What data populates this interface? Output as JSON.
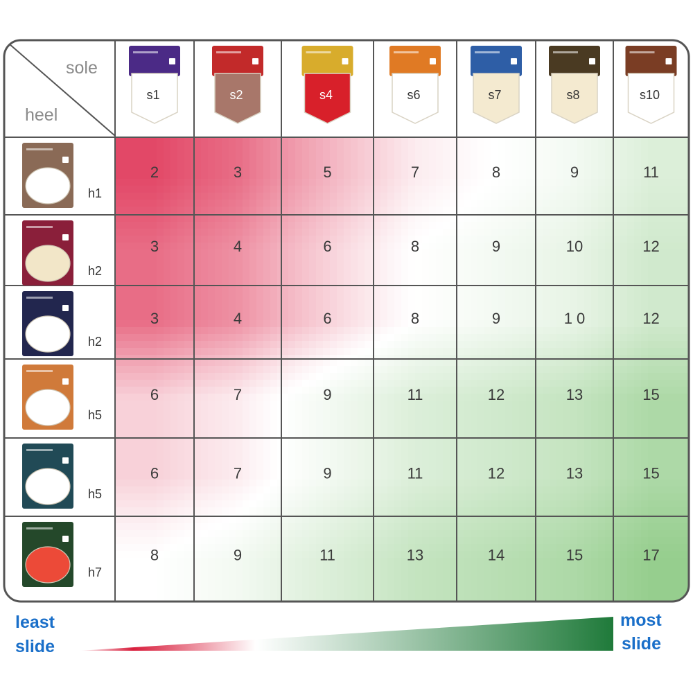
{
  "chart_data": {
    "type": "heatmap",
    "corner": {
      "col_header": "sole",
      "row_header": "heel"
    },
    "columns": [
      {
        "label": "s1",
        "color": "#4b2a86",
        "sole_color": "#ffffff"
      },
      {
        "label": "s2",
        "color": "#c22a2a",
        "sole_color": "#a8776a"
      },
      {
        "label": "s4",
        "color": "#d8ac2c",
        "sole_color": "#d8202a"
      },
      {
        "label": "s6",
        "color": "#e07a24",
        "sole_color": "#ffffff"
      },
      {
        "label": "s7",
        "color": "#2e5ea6",
        "sole_color": "#f4ead0"
      },
      {
        "label": "s8",
        "color": "#4a3a22",
        "sole_color": "#f4ead0"
      },
      {
        "label": "s10",
        "color": "#7a3d24",
        "sole_color": "#ffffff"
      }
    ],
    "rows": [
      {
        "label": "h1",
        "color": "#8a6a56",
        "heel_color": "#ffffff",
        "values": [
          2,
          3,
          5,
          7,
          8,
          9,
          11
        ]
      },
      {
        "label": "h2",
        "color": "#8a1f3a",
        "heel_color": "#f2e6c8",
        "values": [
          3,
          4,
          6,
          8,
          9,
          10,
          12
        ]
      },
      {
        "label": "h2",
        "color": "#22264e",
        "heel_color": "#ffffff",
        "values": [
          3,
          4,
          6,
          8,
          9,
          "1 0",
          12
        ]
      },
      {
        "label": "h5",
        "color": "#d07a3a",
        "heel_color": "#ffffff",
        "values": [
          6,
          7,
          9,
          11,
          12,
          13,
          15
        ]
      },
      {
        "label": "h5",
        "color": "#214a56",
        "heel_color": "#ffffff",
        "values": [
          6,
          7,
          9,
          11,
          12,
          13,
          15
        ]
      },
      {
        "label": "h7",
        "color": "#24482a",
        "heel_color": "#ec4a38",
        "values": [
          8,
          9,
          11,
          13,
          14,
          15,
          17
        ]
      }
    ],
    "legend": {
      "low_label": [
        "least",
        "slide"
      ],
      "high_label": [
        "most",
        "slide"
      ],
      "low_color": "#d81e3c",
      "high_color": "#1f7a3a"
    },
    "value_range": [
      2,
      17
    ]
  }
}
